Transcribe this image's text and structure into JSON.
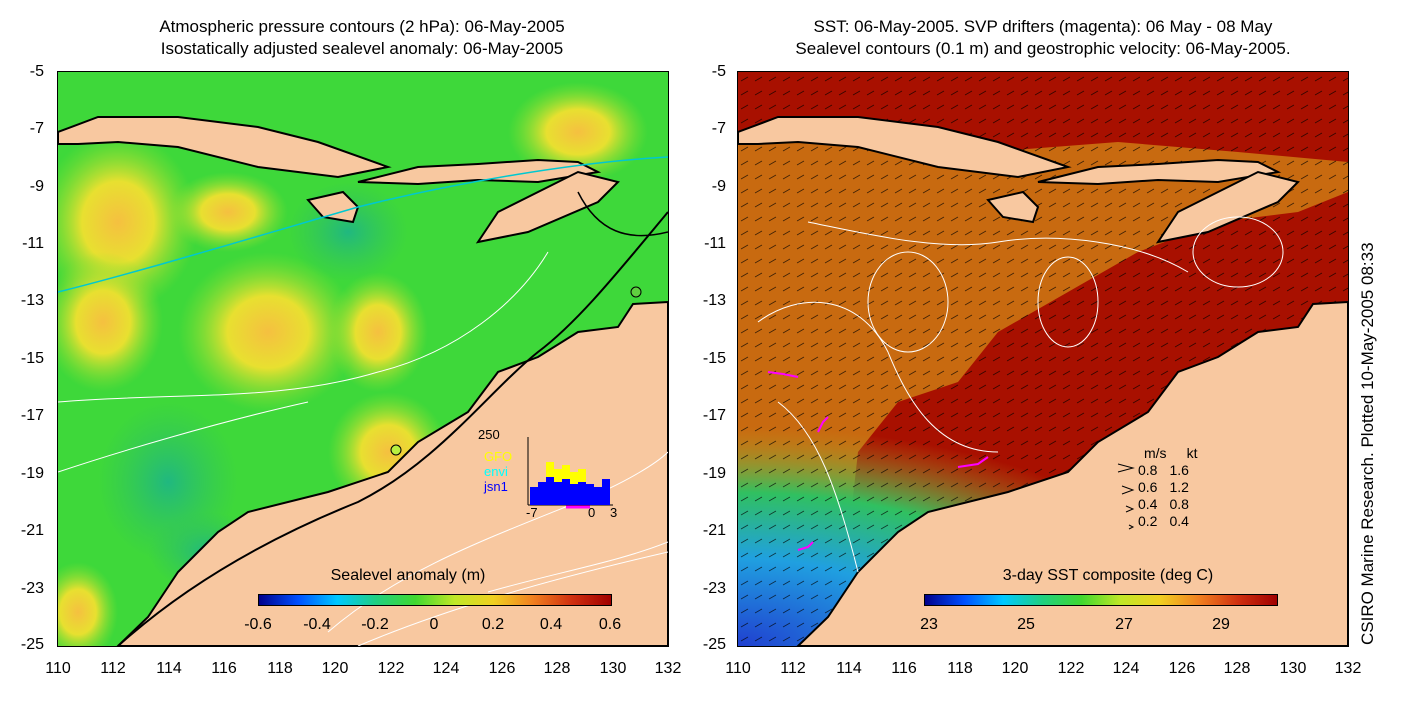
{
  "left_panel": {
    "title_line1": "Atmospheric pressure contours (2 hPa): 06-May-2005",
    "title_line2": "Isostatically adjusted sealevel anomaly: 06-May-2005",
    "colorbar_label": "Sealevel anomaly (m)",
    "colorbar_ticks": [
      "-0.6",
      "-0.4",
      "-0.2",
      "0",
      "0.2",
      "0.4",
      "0.6"
    ],
    "inset": {
      "ymax_label": "250",
      "legend": [
        {
          "name": "GFO",
          "color": "#ffff00"
        },
        {
          "name": "envi",
          "color": "#00ffff"
        },
        {
          "name": "jsn1",
          "color": "#0000ff"
        }
      ],
      "xticks": [
        "-7",
        "0",
        "3"
      ]
    }
  },
  "right_panel": {
    "title_line1": "SST: 06-May-2005. SVP drifters (magenta): 06 May - 08 May",
    "title_line2": "Sealevel contours (0.1 m) and geostrophic velocity: 06-May-2005.",
    "colorbar_label": "3-day SST composite (deg C)",
    "colorbar_ticks": [
      "23",
      "25",
      "27",
      "29"
    ],
    "velocity_legend": {
      "header_ms": "m/s",
      "header_kt": "kt",
      "rows": [
        {
          "ms": "0.8",
          "kt": "1.6"
        },
        {
          "ms": "0.6",
          "kt": "1.2"
        },
        {
          "ms": "0.4",
          "kt": "0.8"
        },
        {
          "ms": "0.2",
          "kt": "0.4"
        }
      ]
    }
  },
  "axes": {
    "y_ticks": [
      "-5",
      "-7",
      "-9",
      "-11",
      "-13",
      "-15",
      "-17",
      "-19",
      "-21",
      "-23",
      "-25"
    ],
    "x_ticks": [
      "110",
      "112",
      "114",
      "116",
      "118",
      "120",
      "122",
      "124",
      "126",
      "128",
      "130",
      "132"
    ]
  },
  "side_caption": "CSIRO Marine Research. Plotted 10-May-2005 08:33",
  "colors": {
    "land": "#f8c8a0",
    "sla_base": "#3ed83a",
    "sst_warm": "#a81000",
    "drifter": "#ff00ff"
  }
}
